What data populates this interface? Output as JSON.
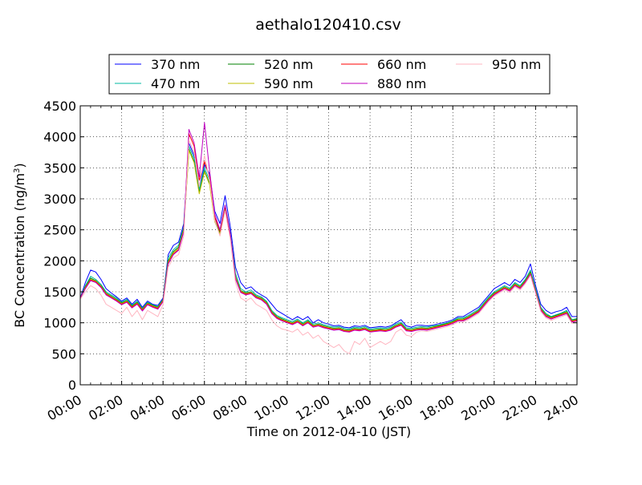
{
  "chart_data": {
    "type": "line",
    "title": "aethalo120410.csv",
    "xlabel": "Time on 2012-04-10 (JST)",
    "ylabel_main": "BC Concentration (ng/m",
    "ylabel_sup": "3",
    "ylabel_end": ")",
    "xlim": [
      0,
      24
    ],
    "ylim": [
      0,
      4500
    ],
    "grid": true,
    "grid_style": "dotted",
    "legend_placement": "top-center",
    "x_ticks": [
      {
        "value": 0,
        "label": "00:00"
      },
      {
        "value": 2,
        "label": "02:00"
      },
      {
        "value": 4,
        "label": "04:00"
      },
      {
        "value": 6,
        "label": "06:00"
      },
      {
        "value": 8,
        "label": "08:00"
      },
      {
        "value": 10,
        "label": "10:00"
      },
      {
        "value": 12,
        "label": "12:00"
      },
      {
        "value": 14,
        "label": "14:00"
      },
      {
        "value": 16,
        "label": "16:00"
      },
      {
        "value": 18,
        "label": "18:00"
      },
      {
        "value": 20,
        "label": "20:00"
      },
      {
        "value": 22,
        "label": "22:00"
      },
      {
        "value": 24,
        "label": "24:00"
      }
    ],
    "y_ticks": [
      {
        "value": 0,
        "label": "0"
      },
      {
        "value": 500,
        "label": "500"
      },
      {
        "value": 1000,
        "label": "1000"
      },
      {
        "value": 1500,
        "label": "1500"
      },
      {
        "value": 2000,
        "label": "2000"
      },
      {
        "value": 2500,
        "label": "2500"
      },
      {
        "value": 3000,
        "label": "3000"
      },
      {
        "value": 3500,
        "label": "3500"
      },
      {
        "value": 4000,
        "label": "4000"
      },
      {
        "value": 4500,
        "label": "4500"
      }
    ],
    "x_hours": [
      0,
      0.25,
      0.5,
      0.75,
      1,
      1.25,
      1.5,
      1.75,
      2,
      2.25,
      2.5,
      2.75,
      3,
      3.25,
      3.5,
      3.75,
      4,
      4.25,
      4.5,
      4.75,
      5,
      5.25,
      5.5,
      5.75,
      6,
      6.25,
      6.5,
      6.75,
      7,
      7.25,
      7.5,
      7.75,
      8,
      8.25,
      8.5,
      8.75,
      9,
      9.25,
      9.5,
      9.75,
      10,
      10.25,
      10.5,
      10.75,
      11,
      11.25,
      11.5,
      11.75,
      12,
      12.25,
      12.5,
      12.75,
      13,
      13.25,
      13.5,
      13.75,
      14,
      14.25,
      14.5,
      14.75,
      15,
      15.25,
      15.5,
      15.75,
      16,
      16.25,
      16.5,
      16.75,
      17,
      17.25,
      17.5,
      17.75,
      18,
      18.25,
      18.5,
      18.75,
      19,
      19.25,
      19.5,
      19.75,
      20,
      20.25,
      20.5,
      20.75,
      21,
      21.25,
      21.5,
      21.75,
      22,
      22.25,
      22.5,
      22.75,
      23,
      23.25,
      23.5,
      23.75,
      24
    ],
    "series": [
      {
        "name": "370 nm",
        "color": "#0000ff",
        "values": [
          1400,
          1650,
          1850,
          1820,
          1700,
          1550,
          1480,
          1420,
          1350,
          1400,
          1300,
          1380,
          1250,
          1350,
          1300,
          1280,
          1400,
          2100,
          2250,
          2300,
          2600,
          3900,
          3700,
          3200,
          3550,
          3400,
          2800,
          2600,
          3050,
          2550,
          1900,
          1650,
          1550,
          1580,
          1500,
          1450,
          1400,
          1300,
          1200,
          1150,
          1100,
          1050,
          1100,
          1050,
          1100,
          1000,
          1050,
          1000,
          980,
          950,
          960,
          930,
          920,
          950,
          940,
          960,
          920,
          930,
          940,
          930,
          950,
          1000,
          1050,
          950,
          930,
          960,
          960,
          950,
          960,
          980,
          1000,
          1020,
          1050,
          1100,
          1100,
          1150,
          1200,
          1250,
          1350,
          1450,
          1550,
          1600,
          1650,
          1600,
          1700,
          1650,
          1750,
          1950,
          1600,
          1300,
          1200,
          1150,
          1180,
          1200,
          1250,
          1100,
          1100
        ]
      },
      {
        "name": "470 nm",
        "color": "#00b8a0",
        "values": [
          1400,
          1600,
          1750,
          1700,
          1620,
          1500,
          1450,
          1400,
          1330,
          1380,
          1280,
          1350,
          1230,
          1330,
          1290,
          1260,
          1380,
          2050,
          2180,
          2250,
          2550,
          3850,
          3650,
          3150,
          3500,
          3300,
          2700,
          2500,
          2900,
          2450,
          1800,
          1550,
          1500,
          1530,
          1450,
          1420,
          1350,
          1200,
          1120,
          1080,
          1050,
          1020,
          1060,
          1000,
          1050,
          980,
          1000,
          970,
          950,
          930,
          940,
          910,
          900,
          930,
          920,
          940,
          900,
          910,
          920,
          910,
          930,
          980,
          1010,
          920,
          910,
          930,
          940,
          930,
          950,
          960,
          980,
          1000,
          1030,
          1080,
          1080,
          1120,
          1170,
          1220,
          1320,
          1420,
          1500,
          1550,
          1600,
          1560,
          1650,
          1600,
          1700,
          1850,
          1550,
          1250,
          1150,
          1100,
          1130,
          1160,
          1200,
          1050,
          1070
        ]
      },
      {
        "name": "520 nm",
        "color": "#008000",
        "values": [
          1390,
          1580,
          1720,
          1680,
          1600,
          1480,
          1430,
          1380,
          1320,
          1360,
          1270,
          1330,
          1220,
          1320,
          1280,
          1250,
          1370,
          2000,
          2150,
          2220,
          2520,
          3800,
          3600,
          3100,
          3450,
          3250,
          2650,
          2450,
          2850,
          2400,
          1750,
          1520,
          1480,
          1500,
          1430,
          1400,
          1330,
          1180,
          1100,
          1060,
          1030,
          1000,
          1040,
          980,
          1030,
          960,
          980,
          950,
          930,
          910,
          920,
          890,
          880,
          910,
          900,
          920,
          880,
          890,
          900,
          890,
          910,
          960,
          990,
          900,
          890,
          910,
          920,
          910,
          930,
          950,
          970,
          990,
          1020,
          1060,
          1060,
          1100,
          1150,
          1200,
          1300,
          1400,
          1480,
          1530,
          1580,
          1540,
          1630,
          1580,
          1680,
          1820,
          1520,
          1230,
          1130,
          1090,
          1120,
          1150,
          1180,
          1040,
          1060
        ]
      },
      {
        "name": "590 nm",
        "color": "#bfbf00",
        "values": [
          1390,
          1570,
          1700,
          1670,
          1590,
          1470,
          1420,
          1370,
          1310,
          1350,
          1260,
          1320,
          1210,
          1310,
          1270,
          1240,
          1360,
          1980,
          2130,
          2200,
          2500,
          3780,
          3580,
          3080,
          3430,
          3230,
          2630,
          2430,
          2830,
          2380,
          1740,
          1510,
          1470,
          1490,
          1420,
          1390,
          1320,
          1170,
          1090,
          1050,
          1020,
          990,
          1030,
          970,
          1020,
          950,
          970,
          940,
          920,
          900,
          910,
          880,
          870,
          900,
          890,
          910,
          870,
          880,
          890,
          880,
          900,
          950,
          980,
          890,
          880,
          900,
          910,
          900,
          920,
          940,
          960,
          980,
          1010,
          1050,
          1050,
          1090,
          1140,
          1190,
          1290,
          1390,
          1470,
          1520,
          1570,
          1530,
          1620,
          1570,
          1670,
          1800,
          1510,
          1220,
          1120,
          1080,
          1110,
          1140,
          1170,
          1030,
          1050
        ]
      },
      {
        "name": "660 nm",
        "color": "#ff0000",
        "values": [
          1400,
          1560,
          1690,
          1660,
          1580,
          1460,
          1410,
          1360,
          1300,
          1340,
          1250,
          1310,
          1200,
          1300,
          1260,
          1230,
          1350,
          1960,
          2110,
          2180,
          2480,
          4050,
          3850,
          3300,
          3600,
          3350,
          2700,
          2480,
          2880,
          2420,
          1720,
          1500,
          1460,
          1480,
          1410,
          1380,
          1310,
          1160,
          1080,
          1040,
          1010,
          980,
          1020,
          960,
          1010,
          940,
          960,
          930,
          910,
          890,
          900,
          870,
          860,
          890,
          880,
          900,
          860,
          870,
          880,
          870,
          890,
          940,
          970,
          880,
          870,
          890,
          900,
          890,
          910,
          930,
          950,
          970,
          1000,
          1040,
          1040,
          1080,
          1130,
          1180,
          1280,
          1380,
          1460,
          1510,
          1560,
          1520,
          1610,
          1560,
          1660,
          1790,
          1500,
          1210,
          1110,
          1070,
          1100,
          1130,
          1160,
          1020,
          1040
        ]
      },
      {
        "name": "880 nm",
        "color": "#bf00bf",
        "values": [
          1400,
          1550,
          1680,
          1650,
          1570,
          1450,
          1400,
          1350,
          1290,
          1330,
          1240,
          1300,
          1190,
          1290,
          1250,
          1220,
          1340,
          1950,
          2100,
          2170,
          2470,
          4120,
          3900,
          3350,
          4230,
          3450,
          2750,
          2500,
          2900,
          2430,
          1710,
          1490,
          1450,
          1470,
          1400,
          1370,
          1300,
          1150,
          1070,
          1030,
          1000,
          970,
          1010,
          950,
          1000,
          930,
          950,
          920,
          900,
          880,
          890,
          860,
          850,
          880,
          870,
          890,
          850,
          860,
          870,
          860,
          880,
          930,
          960,
          870,
          860,
          880,
          890,
          880,
          900,
          920,
          940,
          960,
          990,
          1030,
          1030,
          1070,
          1120,
          1170,
          1270,
          1370,
          1450,
          1500,
          1550,
          1510,
          1600,
          1550,
          1650,
          1780,
          1490,
          1200,
          1100,
          1060,
          1090,
          1120,
          1150,
          1010,
          1030
        ]
      },
      {
        "name": "950 nm",
        "color": "#ffb6c1",
        "values": [
          1380,
          1500,
          1600,
          1550,
          1450,
          1300,
          1250,
          1200,
          1150,
          1250,
          1100,
          1200,
          1050,
          1200,
          1150,
          1100,
          1300,
          1900,
          2050,
          2100,
          2400,
          3950,
          3750,
          3200,
          3700,
          3300,
          2650,
          2400,
          2800,
          2350,
          1650,
          1400,
          1350,
          1400,
          1300,
          1250,
          1200,
          1050,
          950,
          900,
          880,
          850,
          900,
          800,
          850,
          750,
          800,
          700,
          650,
          600,
          650,
          550,
          500,
          700,
          650,
          750,
          600,
          650,
          700,
          650,
          700,
          850,
          900,
          800,
          780,
          850,
          870,
          860,
          880,
          900,
          920,
          940,
          970,
          1010,
          1010,
          1050,
          1100,
          1150,
          1250,
          1350,
          1430,
          1480,
          1530,
          1490,
          1580,
          1530,
          1630,
          1760,
          1470,
          1180,
          1080,
          1040,
          1070,
          1100,
          1130,
          990,
          1010
        ]
      }
    ]
  }
}
